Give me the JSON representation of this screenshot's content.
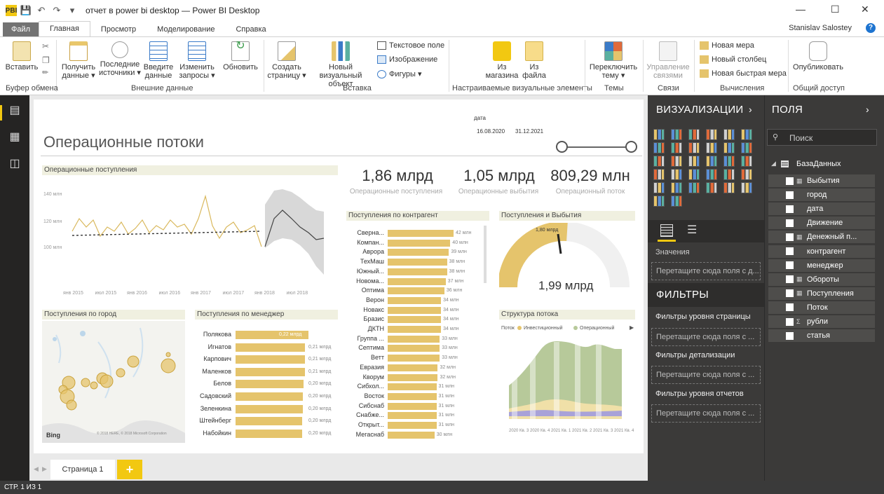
{
  "window": {
    "title": "отчет в power bi desktop — Power BI Desktop",
    "logo": "PBI"
  },
  "tabs": [
    "Файл",
    "Главная",
    "Просмотр",
    "Моделирование",
    "Справка"
  ],
  "user": "Stanislav Salostey",
  "ribbon": {
    "paste": "Вставить",
    "get_data": "Получить данные ▾",
    "recent": "Последние источники ▾",
    "enter_data": "Введите данные",
    "edit_queries": "Изменить запросы ▾",
    "refresh": "Обновить",
    "new_page": "Создать страницу ▾",
    "new_visual": "Новый визуальный объект",
    "textbox": "Текстовое поле",
    "image": "Изображение",
    "shapes": "Фигуры ▾",
    "from_store": "Из магазина",
    "from_file": "Из файла",
    "switch_theme": "Переключить тему ▾",
    "manage_rel": "Управление связями",
    "new_measure": "Новая мера",
    "new_column": "Новый столбец",
    "quick_measure": "Новая быстрая мера",
    "publish": "Опубликовать",
    "groups": {
      "clipboard": "Буфер обмена",
      "external": "Внешние данные",
      "insert": "Вставка",
      "custom": "Настраиваемые визуальные элементы",
      "themes": "Темы",
      "relations": "Связи",
      "calc": "Вычисления",
      "share": "Общий доступ"
    }
  },
  "report": {
    "title": "Операционные потоки",
    "slicer": {
      "label": "дата",
      "from": "16.08.2020",
      "to": "31.12.2021"
    },
    "kpis": [
      {
        "value": "1,86 млрд",
        "label": "Операционные поступления"
      },
      {
        "value": "1,05 млрд",
        "label": "Операционные выбытия"
      },
      {
        "value": "809,29 млн",
        "label": "Операционный поток"
      }
    ],
    "line_title": "Операционные поступления",
    "line_y": [
      "140 млн",
      "120 млн",
      "100 млн"
    ],
    "line_x": [
      "янв 2015",
      "июл 2015",
      "янв 2016",
      "июл 2016",
      "янв 2017",
      "июл 2017",
      "янв 2018",
      "июл 2018"
    ],
    "map_title": "Поступления по город",
    "map_credit": "© 2018 HERE, © 2018 Microsoft Corporation",
    "map_logo": "Bing",
    "manager_title": "Поступления по менеджер",
    "managers": [
      {
        "name": "Полякова",
        "value": "0,22 млрд",
        "frac": 1.0
      },
      {
        "name": "Игнатов",
        "value": "0,21 млрд",
        "frac": 0.95
      },
      {
        "name": "Карпович",
        "value": "0,21 млрд",
        "frac": 0.95
      },
      {
        "name": "Маленков",
        "value": "0,21 млрд",
        "frac": 0.95
      },
      {
        "name": "Белов",
        "value": "0,20 млрд",
        "frac": 0.93
      },
      {
        "name": "Садовский",
        "value": "0,20 млрд",
        "frac": 0.92
      },
      {
        "name": "Зеленкина",
        "value": "0,20 млрд",
        "frac": 0.92
      },
      {
        "name": "Штейнберг",
        "value": "0,20 млрд",
        "frac": 0.91
      },
      {
        "name": "Набойкин",
        "value": "0,20 млрд",
        "frac": 0.91
      }
    ],
    "contr_title": "Поступления по контрагент",
    "contragents": [
      {
        "name": "Сверна...",
        "value": "42 млн",
        "frac": 1.0
      },
      {
        "name": "Компан...",
        "value": "40 млн",
        "frac": 0.95
      },
      {
        "name": "Аврора",
        "value": "39 млн",
        "frac": 0.93
      },
      {
        "name": "ТехМаш",
        "value": "38 млн",
        "frac": 0.9
      },
      {
        "name": "Южный...",
        "value": "38 млн",
        "frac": 0.9
      },
      {
        "name": "Новома...",
        "value": "37 млн",
        "frac": 0.88
      },
      {
        "name": "Оптима",
        "value": "36 млн",
        "frac": 0.86
      },
      {
        "name": "Верон",
        "value": "34 млн",
        "frac": 0.81
      },
      {
        "name": "Новакс",
        "value": "34 млн",
        "frac": 0.81
      },
      {
        "name": "Бразис",
        "value": "34 млн",
        "frac": 0.81
      },
      {
        "name": "ДКТН",
        "value": "34 млн",
        "frac": 0.81
      },
      {
        "name": "Группа ...",
        "value": "33 млн",
        "frac": 0.79
      },
      {
        "name": "Септима",
        "value": "33 млн",
        "frac": 0.79
      },
      {
        "name": "Ветт",
        "value": "33 млн",
        "frac": 0.79
      },
      {
        "name": "Евразия",
        "value": "32 млн",
        "frac": 0.76
      },
      {
        "name": "Кворум",
        "value": "32 млн",
        "frac": 0.76
      },
      {
        "name": "Сибхол...",
        "value": "31 млн",
        "frac": 0.74
      },
      {
        "name": "Восток",
        "value": "31 млн",
        "frac": 0.74
      },
      {
        "name": "Сибснаб",
        "value": "31 млн",
        "frac": 0.74
      },
      {
        "name": "Снабже...",
        "value": "31 млн",
        "frac": 0.74
      },
      {
        "name": "Открыт...",
        "value": "31 млн",
        "frac": 0.74
      },
      {
        "name": "Мегаснаб",
        "value": "30 млн",
        "frac": 0.71
      }
    ],
    "gauge_title": "Поступления и Выбытия",
    "gauge_target": "1,80 млрд",
    "gauge_value": "1,99 млрд",
    "area_title": "Структура потока",
    "area_legend": {
      "title": "Поток",
      "a": "Инвестиционный",
      "b": "Операционный"
    },
    "area_x": [
      "2020 Кв. 3",
      "2020 Кв. 4",
      "2021 Кв. 1",
      "2021 Кв. 2",
      "2021 Кв. 3",
      "2021 Кв. 4"
    ]
  },
  "pages": {
    "tab": "Страница 1",
    "add": "+"
  },
  "status": "СТР. 1 ИЗ 1",
  "vis_pane": {
    "title": "ВИЗУАЛИЗАЦИИ",
    "values_label": "Значения",
    "drop": "Перетащите сюда поля с д...",
    "filters_title": "ФИЛЬТРЫ",
    "f_page": "Фильтры уровня страницы",
    "f_drill": "Фильтры детализации",
    "f_report": "Фильтры уровня отчетов",
    "drop2": "Перетащите сюда поля с ..."
  },
  "fields_pane": {
    "title": "ПОЛЯ",
    "search": "Поиск",
    "table": "БазаДанных",
    "fields": [
      "Выбытия",
      "город",
      "дата",
      "Движение",
      "Денежный п...",
      "контрагент",
      "менеджер",
      "Обороты",
      "Поступления",
      "Поток",
      "рубли",
      "статья"
    ]
  },
  "colors": {
    "accent": "#f2c811",
    "bar": "#e5c46c",
    "dark": "#3b3a39"
  }
}
